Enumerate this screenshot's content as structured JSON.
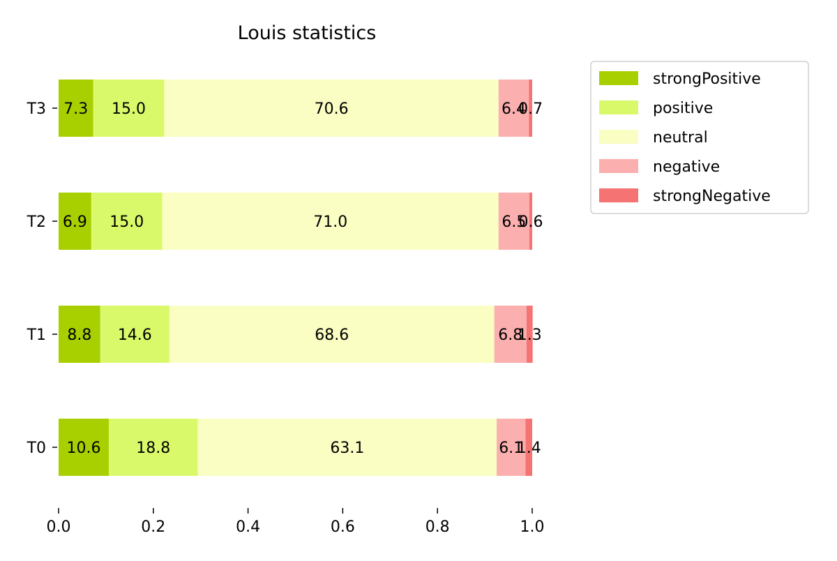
{
  "chart_data": {
    "type": "bar",
    "orientation": "horizontal",
    "stacked": true,
    "title": "Louis statistics",
    "xlabel": "",
    "ylabel": "",
    "xlim": [
      0,
      1
    ],
    "x_ticks": [
      0.0,
      0.2,
      0.4,
      0.6,
      0.8,
      1.0
    ],
    "x_tick_labels": [
      "0.0",
      "0.2",
      "0.4",
      "0.6",
      "0.8",
      "1.0"
    ],
    "categories": [
      "T0",
      "T1",
      "T2",
      "T3"
    ],
    "grid": false,
    "legend_position": "outside-top-right",
    "series": [
      {
        "name": "strongPositive",
        "color": "#a8d000",
        "values": [
          0.106,
          0.088,
          0.069,
          0.073
        ],
        "labels": [
          "10.6",
          "8.8",
          "6.9",
          "7.3"
        ]
      },
      {
        "name": "positive",
        "color": "#d9f96a",
        "values": [
          0.188,
          0.146,
          0.15,
          0.15
        ],
        "labels": [
          "18.8",
          "14.6",
          "15.0",
          "15.0"
        ]
      },
      {
        "name": "neutral",
        "color": "#fafec2",
        "values": [
          0.631,
          0.686,
          0.71,
          0.706
        ],
        "labels": [
          "63.1",
          "68.6",
          "71.0",
          "70.6"
        ]
      },
      {
        "name": "negative",
        "color": "#fbafaf",
        "values": [
          0.061,
          0.068,
          0.065,
          0.064
        ],
        "labels": [
          "6.1",
          "6.8",
          "6.5",
          "6.4"
        ]
      },
      {
        "name": "strongNegative",
        "color": "#f57373",
        "values": [
          0.014,
          0.013,
          0.006,
          0.007
        ],
        "labels": [
          "1.4",
          "1.3",
          "0.6",
          "0.7"
        ]
      }
    ]
  }
}
